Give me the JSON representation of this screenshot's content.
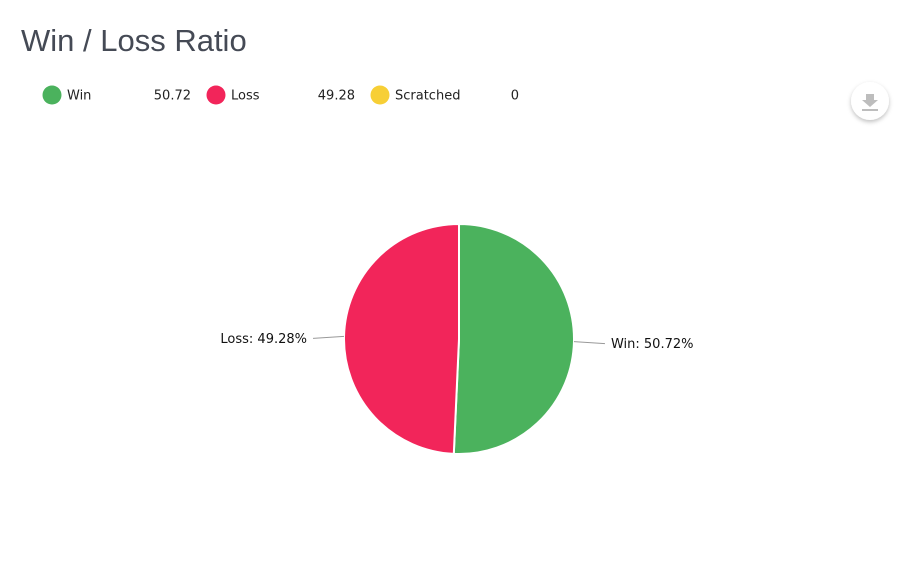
{
  "chart_data": {
    "type": "pie",
    "title": "Win / Loss Ratio",
    "categories": [
      "Win",
      "Loss",
      "Scratched"
    ],
    "values": [
      50.72,
      49.28,
      0
    ],
    "value_labels": [
      "Win: 50.72%",
      "Loss: 49.28%",
      null
    ],
    "colors": [
      "#4bb25d",
      "#f2255a",
      "#f7cf36"
    ],
    "legend": "top-left"
  }
}
